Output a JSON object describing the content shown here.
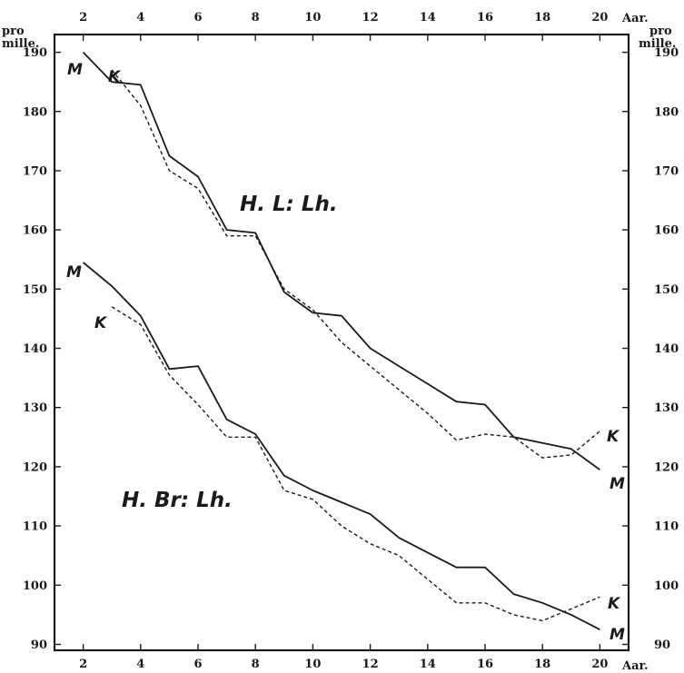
{
  "chart_data": {
    "type": "line",
    "x_unit": "Aar.",
    "y_unit_lines": [
      "pro",
      "mille."
    ],
    "xlim": [
      1,
      21
    ],
    "ylim": [
      89,
      193
    ],
    "x_ticks": [
      2,
      4,
      6,
      8,
      10,
      12,
      14,
      16,
      18,
      20
    ],
    "y_ticks": [
      90,
      100,
      110,
      120,
      130,
      140,
      150,
      160,
      170,
      180,
      190
    ],
    "grid": false,
    "groups": [
      {
        "label": "H. L: Lh.",
        "series": [
          {
            "name": "M",
            "style": "solid",
            "x": [
              2,
              3,
              4,
              5,
              6,
              7,
              8,
              9,
              10,
              11,
              12,
              13,
              14,
              15,
              16,
              17,
              18,
              19,
              20
            ],
            "y": [
              190,
              185,
              184.5,
              172.5,
              169,
              160,
              159.5,
              149.5,
              146,
              145.5,
              140,
              137,
              134,
              131,
              130.5,
              125,
              124,
              123,
              119.5
            ]
          },
          {
            "name": "K",
            "style": "dashed",
            "x": [
              3,
              4,
              5,
              6,
              7,
              8,
              9,
              10,
              11,
              12,
              13,
              14,
              15,
              16,
              17,
              18,
              19,
              20
            ],
            "y": [
              187,
              181,
              170,
              167,
              159,
              159,
              150,
              146.5,
              141,
              137,
              133,
              129,
              124.5,
              125.5,
              125,
              121.5,
              122,
              126
            ]
          }
        ]
      },
      {
        "label": "H. Br: Lh.",
        "series": [
          {
            "name": "M",
            "style": "solid",
            "x": [
              2,
              3,
              4,
              5,
              6,
              7,
              8,
              9,
              10,
              11,
              12,
              13,
              14,
              15,
              16,
              17,
              18,
              19,
              20
            ],
            "y": [
              154.5,
              150.5,
              145.5,
              136.5,
              137,
              128,
              125.5,
              118.5,
              116,
              114,
              112,
              108,
              105.5,
              103,
              103,
              98.5,
              97,
              95,
              92.5
            ]
          },
          {
            "name": "K",
            "style": "dashed",
            "x": [
              3,
              4,
              5,
              6,
              7,
              8,
              9,
              10,
              11,
              12,
              13,
              14,
              15,
              16,
              17,
              18,
              19,
              20
            ],
            "y": [
              147,
              144,
              135.5,
              130.5,
              125,
              125,
              116,
              114.5,
              110,
              107,
              105,
              101,
              97,
              97,
              95,
              94,
              96,
              98
            ]
          }
        ]
      }
    ]
  }
}
